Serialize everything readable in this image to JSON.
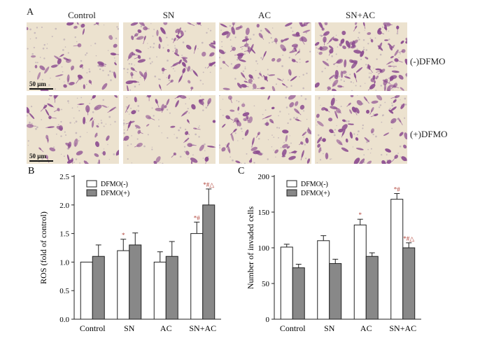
{
  "panel_a": {
    "letter": "A",
    "columns": [
      "Control",
      "SN",
      "AC",
      "SN+AC"
    ],
    "rows": [
      "(-)DFMO",
      "(+)DFMO"
    ],
    "scalebar": "50 μm",
    "cell_color": "#8a4a8f",
    "background_color": "#ece2cf"
  },
  "chart_data": [
    {
      "type": "bar",
      "letter": "B",
      "categories": [
        "Control",
        "SN",
        "AC",
        "SN+AC"
      ],
      "series": [
        {
          "name": "DFMO(-)",
          "values": [
            1.0,
            1.2,
            1.0,
            1.5
          ],
          "errors": [
            0.0,
            0.2,
            0.18,
            0.2
          ],
          "marks": [
            "",
            "*",
            "",
            "*#"
          ],
          "color": "#ffffff"
        },
        {
          "name": "DFMO(+)",
          "values": [
            1.1,
            1.3,
            1.1,
            2.0
          ],
          "errors": [
            0.2,
            0.21,
            0.26,
            0.28
          ],
          "marks": [
            "",
            "",
            "",
            "*#△"
          ],
          "color": "#888888"
        }
      ],
      "ylabel": "ROS (fold of control)",
      "ylim": [
        0.0,
        2.5
      ],
      "yticks": [
        "0.0",
        "0.5",
        "1.0",
        "1.5",
        "2.0",
        "2.5"
      ],
      "legend": "top-left",
      "grid": false
    },
    {
      "type": "bar",
      "letter": "C",
      "categories": [
        "Control",
        "SN",
        "AC",
        "SN+AC"
      ],
      "series": [
        {
          "name": "DFMO(-)",
          "values": [
            101,
            110,
            132,
            168
          ],
          "errors": [
            4,
            7,
            8,
            8
          ],
          "marks": [
            "",
            "",
            "*",
            "*#"
          ],
          "color": "#ffffff"
        },
        {
          "name": "DFMO(+)",
          "values": [
            72,
            78,
            88,
            100
          ],
          "errors": [
            5,
            6,
            5,
            7
          ],
          "marks": [
            "",
            "",
            "",
            "*#△"
          ],
          "color": "#888888"
        }
      ],
      "ylabel": "Number of invaded cells",
      "ylim": [
        0,
        200
      ],
      "yticks": [
        "0",
        "50",
        "100",
        "150",
        "200"
      ],
      "legend": "top-left",
      "grid": false
    }
  ]
}
